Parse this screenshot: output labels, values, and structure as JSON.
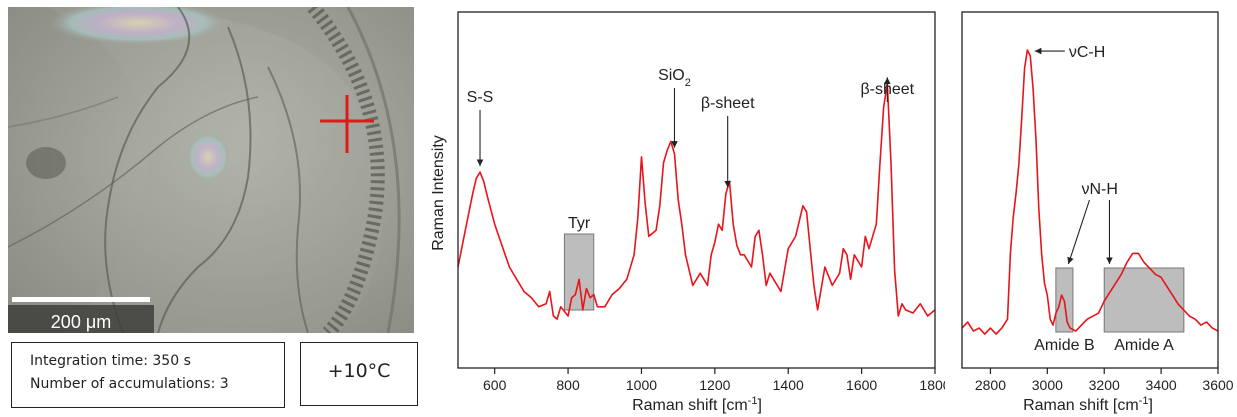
{
  "micrograph": {
    "scale_bar_label": "200 μm"
  },
  "info": {
    "integration": "Integration time: 350 s",
    "accumulations": "Number of accumulations: 3",
    "temperature": "+10°C"
  },
  "colors": {
    "spectrum": "#e8141b",
    "box_fill": "#bdbdbd",
    "axis": "#222222"
  },
  "chart_data": [
    {
      "type": "line",
      "xlabel": "Raman shift [cm-1]",
      "ylabel": "Raman Intensity",
      "xlim": [
        500,
        1800
      ],
      "ylim": [
        0,
        1
      ],
      "xticks": [
        600,
        800,
        1000,
        1200,
        1400,
        1600,
        1800
      ],
      "series": [
        {
          "x": [
            500,
            520,
            540,
            550,
            560,
            570,
            580,
            600,
            620,
            640,
            660,
            680,
            700,
            720,
            740,
            750,
            760,
            770,
            780,
            800,
            810,
            820,
            830,
            840,
            850,
            860,
            870,
            880,
            900,
            920,
            940,
            960,
            980,
            990,
            1000,
            1010,
            1020,
            1040,
            1050,
            1060,
            1070,
            1080,
            1090,
            1100,
            1110,
            1120,
            1140,
            1160,
            1180,
            1190,
            1200,
            1210,
            1220,
            1230,
            1240,
            1250,
            1260,
            1270,
            1280,
            1300,
            1310,
            1320,
            1330,
            1340,
            1350,
            1360,
            1380,
            1400,
            1420,
            1440,
            1450,
            1460,
            1470,
            1480,
            1500,
            1520,
            1540,
            1550,
            1560,
            1570,
            1580,
            1600,
            1610,
            1620,
            1640,
            1650,
            1660,
            1670,
            1680,
            1690,
            1700,
            1710,
            1720,
            1740,
            1760,
            1780,
            1800
          ],
          "y": [
            0.26,
            0.38,
            0.5,
            0.55,
            0.57,
            0.54,
            0.49,
            0.4,
            0.33,
            0.26,
            0.22,
            0.18,
            0.16,
            0.13,
            0.14,
            0.18,
            0.1,
            0.09,
            0.13,
            0.1,
            0.16,
            0.17,
            0.22,
            0.12,
            0.19,
            0.16,
            0.17,
            0.13,
            0.13,
            0.17,
            0.19,
            0.22,
            0.3,
            0.42,
            0.62,
            0.47,
            0.36,
            0.38,
            0.46,
            0.6,
            0.64,
            0.67,
            0.63,
            0.48,
            0.4,
            0.3,
            0.2,
            0.24,
            0.2,
            0.3,
            0.34,
            0.4,
            0.38,
            0.5,
            0.54,
            0.4,
            0.33,
            0.3,
            0.3,
            0.26,
            0.36,
            0.38,
            0.3,
            0.2,
            0.24,
            0.22,
            0.18,
            0.32,
            0.36,
            0.46,
            0.44,
            0.32,
            0.2,
            0.12,
            0.26,
            0.2,
            0.24,
            0.32,
            0.3,
            0.22,
            0.3,
            0.26,
            0.36,
            0.32,
            0.4,
            0.6,
            0.78,
            0.86,
            0.6,
            0.25,
            0.1,
            0.14,
            0.12,
            0.11,
            0.14,
            0.1,
            0.12
          ]
        }
      ],
      "annotations": [
        {
          "label": "S-S",
          "x": 560
        },
        {
          "label": "SiO2",
          "x": 1090
        },
        {
          "label": "β-sheet",
          "x": 1235
        },
        {
          "label": "β-sheet",
          "x": 1670
        }
      ],
      "boxes": [
        {
          "label": "Tyr",
          "x_from": 790,
          "x_to": 870
        }
      ]
    },
    {
      "type": "line",
      "xlabel": "Raman shift [cm-1]",
      "xlim": [
        2700,
        3600
      ],
      "ylim": [
        0,
        1
      ],
      "xticks": [
        2800,
        3000,
        3200,
        3400,
        3600
      ],
      "series": [
        {
          "x": [
            2700,
            2720,
            2740,
            2760,
            2780,
            2800,
            2820,
            2840,
            2860,
            2870,
            2880,
            2890,
            2900,
            2910,
            2920,
            2930,
            2940,
            2950,
            2960,
            2970,
            2980,
            2990,
            3000,
            3010,
            3020,
            3030,
            3040,
            3050,
            3060,
            3070,
            3080,
            3100,
            3120,
            3140,
            3160,
            3180,
            3200,
            3220,
            3240,
            3260,
            3280,
            3300,
            3320,
            3340,
            3360,
            3380,
            3400,
            3420,
            3440,
            3460,
            3480,
            3500,
            3520,
            3540,
            3560,
            3580,
            3600
          ],
          "y": [
            0.05,
            0.07,
            0.04,
            0.05,
            0.03,
            0.05,
            0.03,
            0.05,
            0.08,
            0.3,
            0.42,
            0.5,
            0.6,
            0.75,
            0.92,
            0.98,
            0.96,
            0.85,
            0.68,
            0.45,
            0.3,
            0.2,
            0.16,
            0.08,
            0.06,
            0.1,
            0.12,
            0.16,
            0.14,
            0.07,
            0.05,
            0.04,
            0.06,
            0.08,
            0.09,
            0.1,
            0.14,
            0.17,
            0.2,
            0.23,
            0.27,
            0.3,
            0.3,
            0.27,
            0.25,
            0.23,
            0.22,
            0.19,
            0.16,
            0.13,
            0.11,
            0.09,
            0.08,
            0.06,
            0.07,
            0.05,
            0.04
          ]
        }
      ],
      "annotations": [
        {
          "label": "νC-H",
          "x": 2935
        },
        {
          "label": "νN-H",
          "x": 3060
        }
      ],
      "boxes": [
        {
          "label": "Amide B",
          "x_from": 3030,
          "x_to": 3090
        },
        {
          "label": "Amide A",
          "x_from": 3200,
          "x_to": 3480
        }
      ]
    }
  ]
}
